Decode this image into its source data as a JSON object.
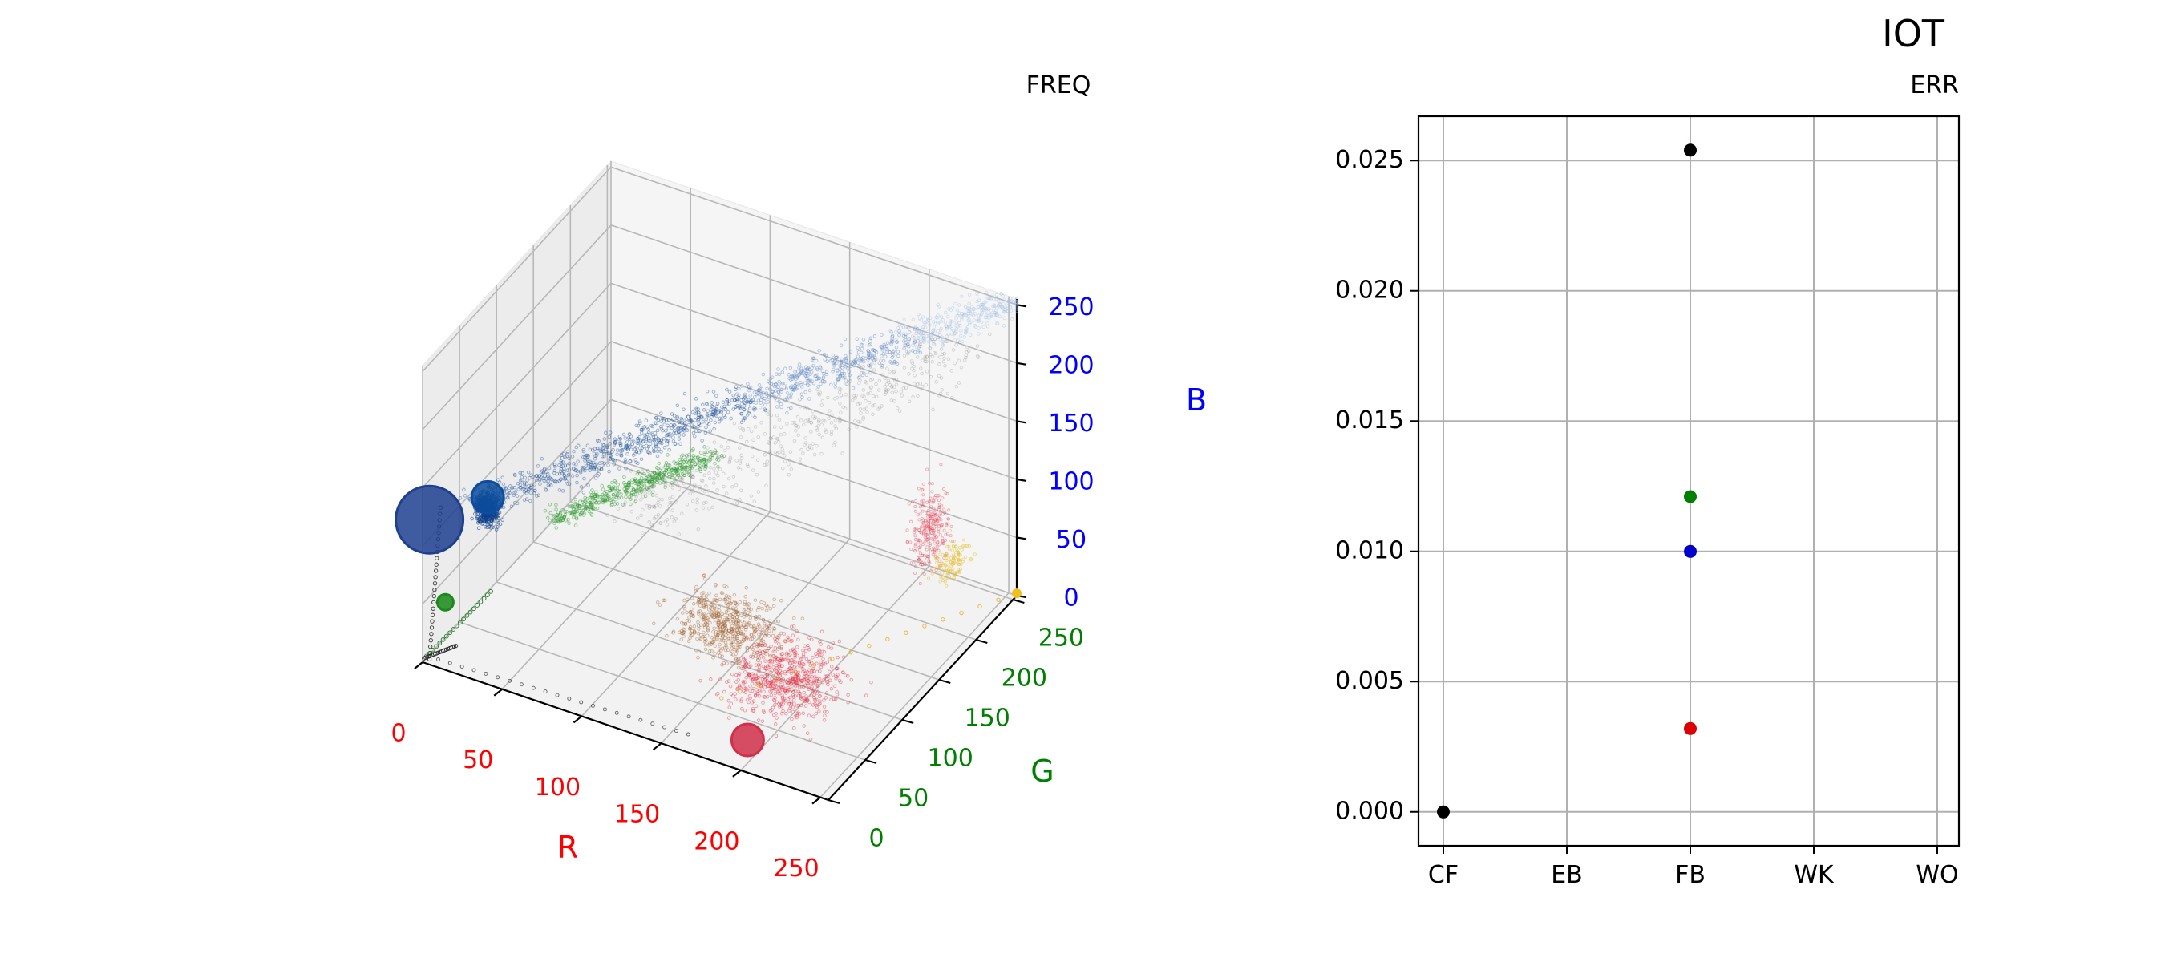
{
  "figure": {
    "title": "IOT"
  },
  "chart_data": [
    {
      "type": "scatter",
      "subtype": "3d-color-histogram",
      "title": "FREQ",
      "xlabel": "R",
      "ylabel": "G",
      "zlabel": "B",
      "xlim": [
        0,
        255
      ],
      "ylim": [
        0,
        255
      ],
      "zlim": [
        0,
        255
      ],
      "xticks": [
        "0",
        "50",
        "100",
        "150",
        "200",
        "250"
      ],
      "yticks": [
        "0",
        "50",
        "100",
        "150",
        "200",
        "250"
      ],
      "zticks": [
        "0",
        "50",
        "100",
        "150",
        "200",
        "250"
      ],
      "axis_colors": {
        "x": "#ff0000",
        "y": "#008000",
        "z": "#0000ff"
      },
      "grid": true,
      "highlighted_points": [
        {
          "r": 2,
          "g": 5,
          "b": 120,
          "size": "large",
          "color": "#1f3f8f"
        },
        {
          "r": 20,
          "g": 45,
          "b": 120,
          "size": "medium",
          "color": "#0d4d9e"
        },
        {
          "r": 5,
          "g": 20,
          "b": 40,
          "size": "small",
          "color": "#1a8a1a"
        },
        {
          "r": 195,
          "g": 20,
          "b": 10,
          "size": "medium",
          "color": "#d0304a"
        }
      ],
      "clusters": [
        {
          "name": "blue",
          "color": "#1f5fb0",
          "r": [
            10,
            255
          ],
          "g": [
            20,
            255
          ],
          "b": [
            110,
            255
          ]
        },
        {
          "name": "green",
          "color": "#2e9a2e",
          "r": [
            40,
            110
          ],
          "g": [
            80,
            160
          ],
          "b": [
            80,
            140
          ]
        },
        {
          "name": "red",
          "color": "#e8283c",
          "r": [
            150,
            255
          ],
          "g": [
            60,
            200
          ],
          "b": [
            20,
            140
          ]
        },
        {
          "name": "brown",
          "color": "#a0602a",
          "r": [
            100,
            200
          ],
          "g": [
            60,
            140
          ],
          "b": [
            20,
            70
          ]
        },
        {
          "name": "gray",
          "color": "#808080",
          "r": [
            80,
            230
          ],
          "g": [
            100,
            230
          ],
          "b": [
            100,
            230
          ]
        },
        {
          "name": "yellow",
          "color": "#e8c030",
          "r": [
            200,
            255
          ],
          "g": [
            180,
            240
          ],
          "b": [
            40,
            80
          ]
        }
      ]
    },
    {
      "type": "scatter",
      "title": "ERR",
      "categories": [
        "CF",
        "EB",
        "FB",
        "WK",
        "WO"
      ],
      "ylim": [
        -0.0013,
        0.0267
      ],
      "yticks": [
        "0.000",
        "0.005",
        "0.010",
        "0.015",
        "0.020",
        "0.025"
      ],
      "grid": true,
      "points": [
        {
          "category": "CF",
          "value": 0.0,
          "color": "#000000"
        },
        {
          "category": "FB",
          "value": 0.0254,
          "color": "#000000"
        },
        {
          "category": "FB",
          "value": 0.0121,
          "color": "#008000"
        },
        {
          "category": "FB",
          "value": 0.01,
          "color": "#0000cc"
        },
        {
          "category": "FB",
          "value": 0.0032,
          "color": "#dd0000"
        }
      ]
    }
  ]
}
